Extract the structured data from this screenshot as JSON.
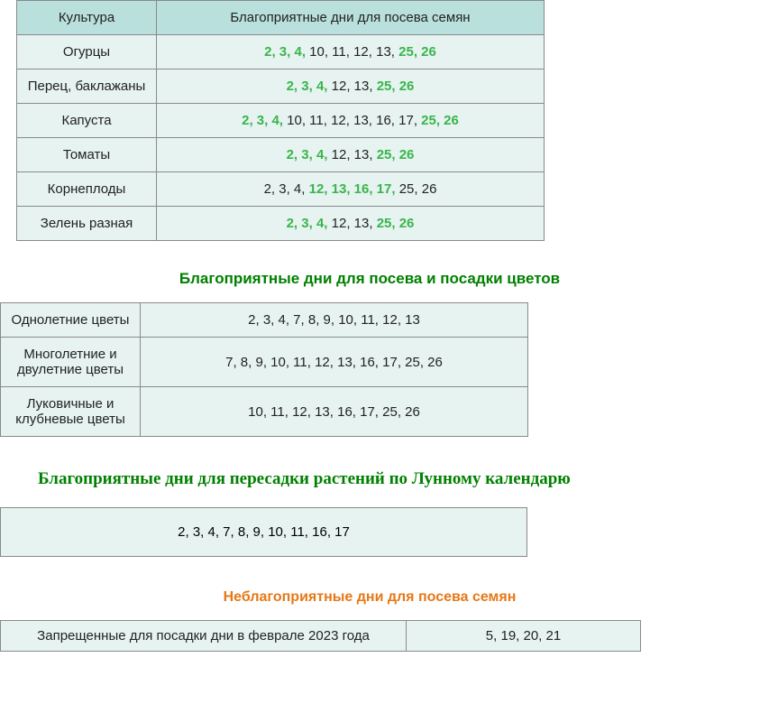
{
  "seedsTable": {
    "headers": {
      "culture": "Культура",
      "days": "Благоприятные дни для посева семян"
    },
    "rows": [
      {
        "culture": "Огурцы",
        "segments": [
          {
            "text": "2, 3, 4,",
            "green": true
          },
          {
            "text": " 10, 11, 12, 13, ",
            "green": false
          },
          {
            "text": "25, 26",
            "green": true
          }
        ]
      },
      {
        "culture": "Перец, баклажаны",
        "segments": [
          {
            "text": "2, 3, 4,",
            "green": true
          },
          {
            "text": " 12, 13, ",
            "green": false
          },
          {
            "text": "25, 26",
            "green": true
          }
        ]
      },
      {
        "culture": "Капуста",
        "segments": [
          {
            "text": "2, 3, 4,",
            "green": true
          },
          {
            "text": " 10, 11, 12, 13, 16, 17, ",
            "green": false
          },
          {
            "text": "25, 26",
            "green": true
          }
        ]
      },
      {
        "culture": "Томаты",
        "segments": [
          {
            "text": "2, 3, 4,",
            "green": true
          },
          {
            "text": " 12, 13, ",
            "green": false
          },
          {
            "text": "25, 26",
            "green": true
          }
        ]
      },
      {
        "culture": "Корнеплоды",
        "segments": [
          {
            "text": "2, 3, 4, ",
            "green": false
          },
          {
            "text": "12, 13, 16, 17,",
            "green": true
          },
          {
            "text": " 25, 26",
            "green": false
          }
        ]
      },
      {
        "culture": "Зелень разная",
        "segments": [
          {
            "text": "2, 3, 4,",
            "green": true
          },
          {
            "text": " 12, 13, ",
            "green": false
          },
          {
            "text": "25, 26",
            "green": true
          }
        ]
      }
    ]
  },
  "flowersHeading": "Благоприятные дни для посева и посадки цветов",
  "flowersTable": {
    "rows": [
      {
        "culture": "Однолетние цветы",
        "days": "2, 3, 4, 7, 8, 9, 10, 11, 12, 13"
      },
      {
        "culture": "Многолетние и двулетние цветы",
        "days": "7, 8, 9, 10, 11, 12, 13, 16, 17, 25, 26"
      },
      {
        "culture": "Луковичные и клубневые цветы",
        "days": "10, 11, 12, 13, 16, 17, 25, 26"
      }
    ]
  },
  "transplantHeading": "Благоприятные дни для пересадки растений по Лунному календарю",
  "transplantDays": "2, 3, 4, 7, 8, 9, 10, 11, 16, 17",
  "badHeading": "Неблагоприятные дни для посева семян",
  "badTable": {
    "label": "Запрещенные для посадки дни в феврале 2023 года",
    "days": "5, 19, 20, 21"
  },
  "colors": {
    "headerBg": "#b9e0dc",
    "cellBg": "#e6f3f1",
    "border": "#8a8a8a",
    "greenBold": "#39b54a",
    "headingGreen": "#008000",
    "headingOrange": "#e67817",
    "redText": "#cc0000"
  }
}
